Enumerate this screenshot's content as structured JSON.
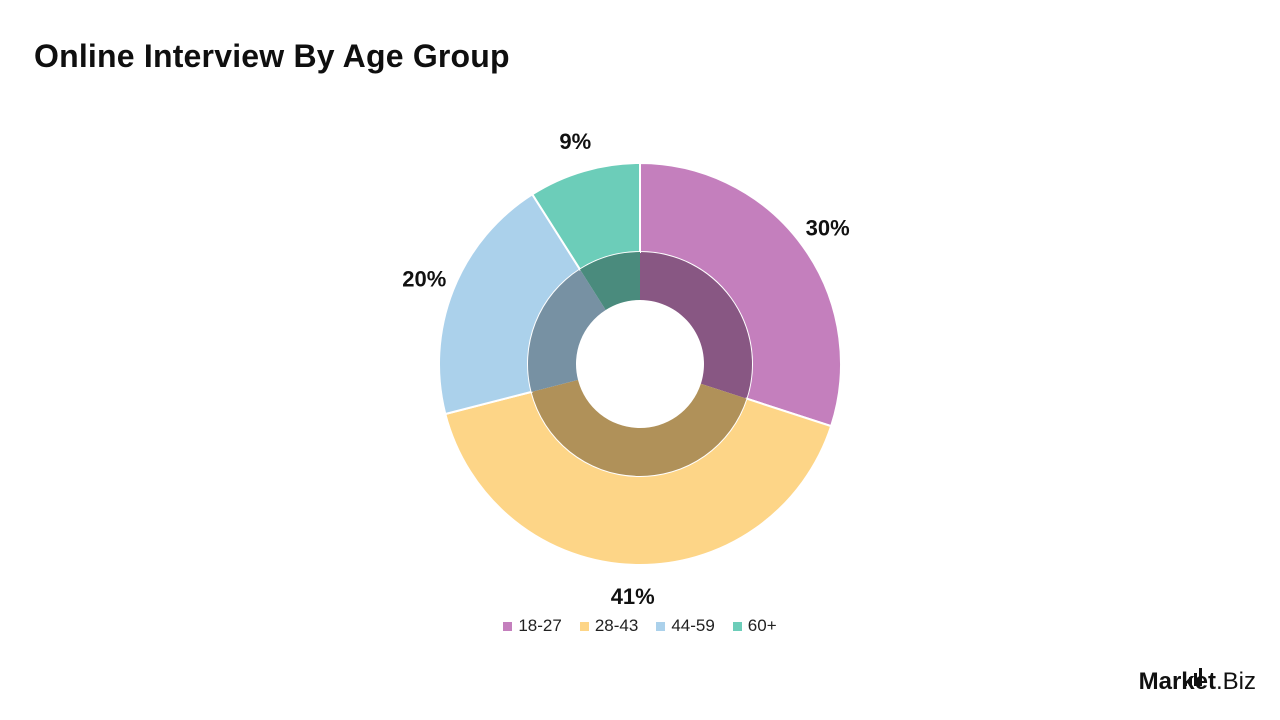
{
  "title": "Online Interview By Age Group",
  "chart_data": {
    "type": "pie",
    "style": "donut",
    "categories": [
      "18-27",
      "28-43",
      "44-59",
      "60+"
    ],
    "values": [
      30,
      41,
      20,
      9
    ],
    "labels": [
      "30%",
      "41%",
      "20%",
      "9%"
    ],
    "colors": [
      "#c47fbd",
      "#fdd587",
      "#abd1eb",
      "#6ccdb9"
    ],
    "inner_colors": [
      "#885783",
      "#b09159",
      "#7791a3",
      "#4a8b7d"
    ],
    "legend_position": "bottom"
  },
  "brand": {
    "strong": "Market",
    "light": ".Biz"
  }
}
